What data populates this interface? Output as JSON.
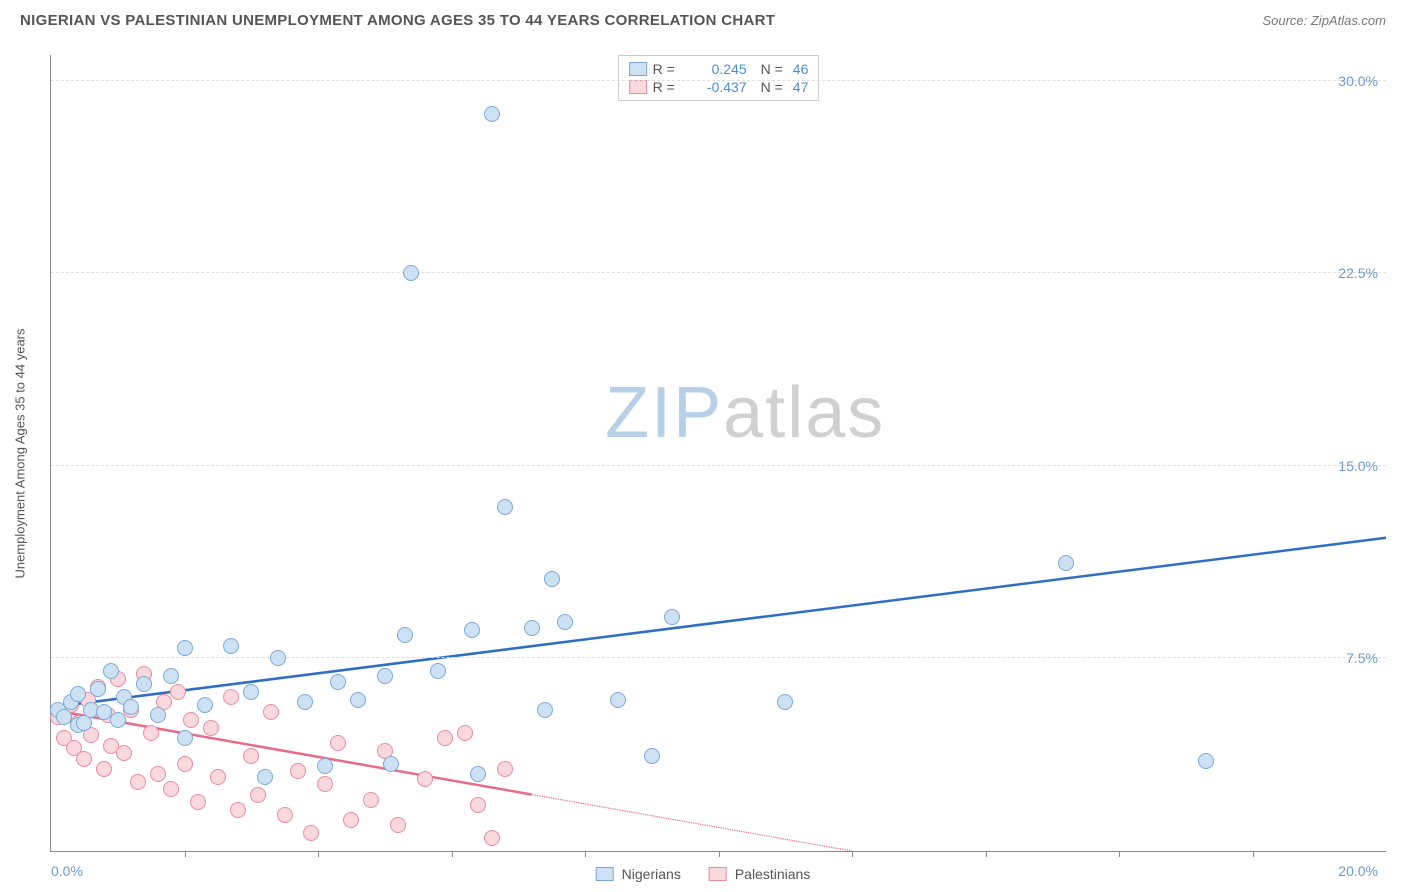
{
  "header": {
    "title": "NIGERIAN VS PALESTINIAN UNEMPLOYMENT AMONG AGES 35 TO 44 YEARS CORRELATION CHART",
    "source_prefix": "Source: ",
    "source": "ZipAtlas.com"
  },
  "chart": {
    "type": "scatter",
    "y_axis_label": "Unemployment Among Ages 35 to 44 years",
    "xlim": [
      0,
      20
    ],
    "ylim": [
      0,
      31
    ],
    "x_left_label": "0.0%",
    "x_right_label": "20.0%",
    "y_ticks": [
      {
        "value": 7.5,
        "label": "7.5%"
      },
      {
        "value": 15.0,
        "label": "15.0%"
      },
      {
        "value": 22.5,
        "label": "22.5%"
      },
      {
        "value": 30.0,
        "label": "30.0%"
      }
    ],
    "x_tick_positions": [
      2,
      4,
      6,
      8,
      10,
      12,
      14,
      16,
      18
    ],
    "grid_color": "#dddddd",
    "axis_color": "#888888",
    "background": "#ffffff",
    "point_radius": 8,
    "series": {
      "nigerians": {
        "label": "Nigerians",
        "fill": "#cde1f5",
        "stroke": "#7aa9d8",
        "line_color": "#2f6fc2",
        "r": "0.245",
        "n": "46",
        "trend": {
          "x1": 0,
          "y1": 5.6,
          "x2": 20,
          "y2": 12.2,
          "solid_until_x": 20
        },
        "points": [
          [
            0.1,
            5.5
          ],
          [
            0.2,
            5.2
          ],
          [
            0.3,
            5.8
          ],
          [
            0.4,
            4.9
          ],
          [
            0.4,
            6.1
          ],
          [
            0.5,
            5.0
          ],
          [
            0.6,
            5.5
          ],
          [
            0.7,
            6.3
          ],
          [
            0.8,
            5.4
          ],
          [
            0.9,
            7.0
          ],
          [
            1.0,
            5.1
          ],
          [
            1.1,
            6.0
          ],
          [
            1.2,
            5.6
          ],
          [
            1.4,
            6.5
          ],
          [
            1.6,
            5.3
          ],
          [
            1.8,
            6.8
          ],
          [
            2.0,
            4.4
          ],
          [
            2.0,
            7.9
          ],
          [
            2.3,
            5.7
          ],
          [
            2.7,
            8.0
          ],
          [
            3.0,
            6.2
          ],
          [
            3.2,
            2.9
          ],
          [
            3.4,
            7.5
          ],
          [
            3.8,
            5.8
          ],
          [
            4.1,
            3.3
          ],
          [
            4.3,
            6.6
          ],
          [
            4.6,
            5.9
          ],
          [
            5.0,
            6.8
          ],
          [
            5.1,
            3.4
          ],
          [
            5.3,
            8.4
          ],
          [
            5.4,
            22.5
          ],
          [
            5.8,
            7.0
          ],
          [
            6.3,
            8.6
          ],
          [
            6.4,
            3.0
          ],
          [
            6.6,
            28.7
          ],
          [
            6.8,
            13.4
          ],
          [
            7.2,
            8.7
          ],
          [
            7.4,
            5.5
          ],
          [
            7.5,
            10.6
          ],
          [
            7.7,
            8.9
          ],
          [
            8.5,
            5.9
          ],
          [
            9.0,
            3.7
          ],
          [
            9.3,
            9.1
          ],
          [
            11.0,
            5.8
          ],
          [
            15.2,
            11.2
          ],
          [
            17.3,
            3.5
          ]
        ]
      },
      "palestinians": {
        "label": "Palestinians",
        "fill": "#fbd7de",
        "stroke": "#e88ca0",
        "line_color": "#e86b8a",
        "r": "-0.437",
        "n": "47",
        "trend": {
          "x1": 0,
          "y1": 5.5,
          "x2": 12,
          "y2": 0.0,
          "solid_until_x": 7.2
        },
        "points": [
          [
            0.1,
            5.2
          ],
          [
            0.2,
            4.4
          ],
          [
            0.3,
            5.7
          ],
          [
            0.35,
            4.0
          ],
          [
            0.4,
            5.0
          ],
          [
            0.5,
            3.6
          ],
          [
            0.55,
            5.9
          ],
          [
            0.6,
            4.5
          ],
          [
            0.7,
            6.4
          ],
          [
            0.8,
            3.2
          ],
          [
            0.85,
            5.3
          ],
          [
            0.9,
            4.1
          ],
          [
            1.0,
            6.7
          ],
          [
            1.1,
            3.8
          ],
          [
            1.2,
            5.5
          ],
          [
            1.3,
            2.7
          ],
          [
            1.4,
            6.9
          ],
          [
            1.5,
            4.6
          ],
          [
            1.6,
            3.0
          ],
          [
            1.7,
            5.8
          ],
          [
            1.8,
            2.4
          ],
          [
            1.9,
            6.2
          ],
          [
            2.0,
            3.4
          ],
          [
            2.1,
            5.1
          ],
          [
            2.2,
            1.9
          ],
          [
            2.4,
            4.8
          ],
          [
            2.5,
            2.9
          ],
          [
            2.7,
            6.0
          ],
          [
            2.8,
            1.6
          ],
          [
            3.0,
            3.7
          ],
          [
            3.1,
            2.2
          ],
          [
            3.3,
            5.4
          ],
          [
            3.5,
            1.4
          ],
          [
            3.7,
            3.1
          ],
          [
            3.9,
            0.7
          ],
          [
            4.1,
            2.6
          ],
          [
            4.3,
            4.2
          ],
          [
            4.5,
            1.2
          ],
          [
            4.8,
            2.0
          ],
          [
            5.0,
            3.9
          ],
          [
            5.2,
            1.0
          ],
          [
            5.6,
            2.8
          ],
          [
            5.9,
            4.4
          ],
          [
            6.2,
            4.6
          ],
          [
            6.4,
            1.8
          ],
          [
            6.6,
            0.5
          ],
          [
            6.8,
            3.2
          ]
        ]
      }
    }
  },
  "legend_top": {
    "r_label": "R =",
    "n_label": "N ="
  },
  "watermark": {
    "zip": "ZIP",
    "atlas": "atlas"
  }
}
